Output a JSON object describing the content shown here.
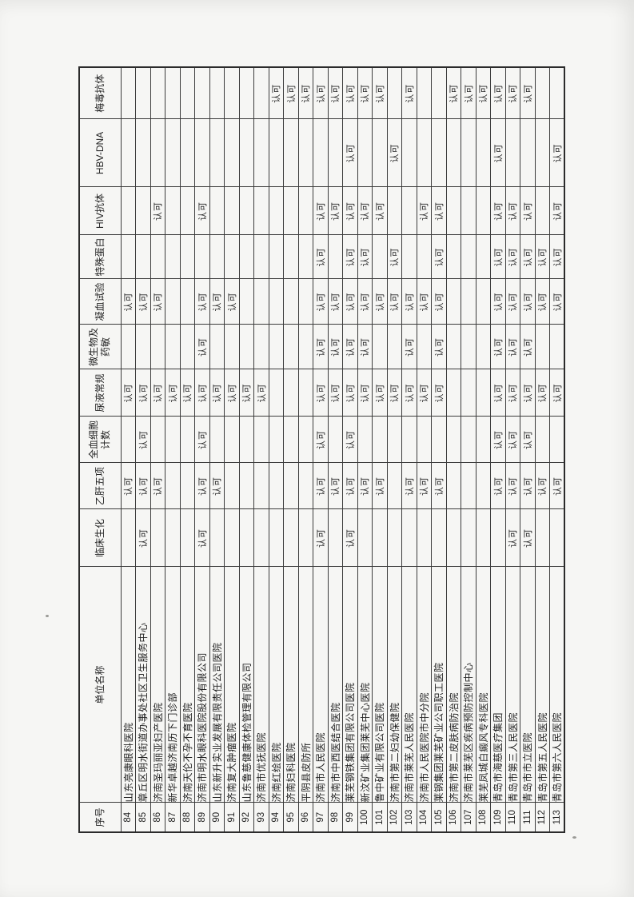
{
  "table": {
    "columns": [
      "序号",
      "单位名称",
      "临床生化",
      "乙肝五项",
      "全血细胞计数",
      "尿液常规",
      "微生物及药敏",
      "凝血试验",
      "特殊蛋白",
      "HIV抗体",
      "HBV-DNA",
      "梅毒抗体"
    ],
    "mark_label": "认可",
    "rows": [
      {
        "no": "84",
        "name": "山东亮康眼科医院",
        "cells": [
          "",
          "认可",
          "",
          "认可",
          "",
          "认可",
          "",
          "",
          "",
          ""
        ]
      },
      {
        "no": "85",
        "name": "章丘区明水街道办事处社区卫生服务中心",
        "cells": [
          "认可",
          "认可",
          "认可",
          "认可",
          "",
          "认可",
          "",
          "",
          "",
          ""
        ]
      },
      {
        "no": "86",
        "name": "济南圣玛丽亚妇产医院",
        "cells": [
          "",
          "认可",
          "",
          "认可",
          "",
          "认可",
          "",
          "认可",
          "",
          ""
        ]
      },
      {
        "no": "87",
        "name": "新华卓越济南历下门诊部",
        "cells": [
          "",
          "",
          "",
          "认可",
          "",
          "",
          "",
          "",
          "",
          ""
        ]
      },
      {
        "no": "88",
        "name": "济南天伦不孕不育医院",
        "cells": [
          "",
          "",
          "",
          "认可",
          "",
          "",
          "",
          "",
          "",
          ""
        ]
      },
      {
        "no": "89",
        "name": "济南市明水眼科医院股份有限公司",
        "cells": [
          "认可",
          "认可",
          "认可",
          "认可",
          "认可",
          "认可",
          "",
          "认可",
          "",
          ""
        ]
      },
      {
        "no": "90",
        "name": "山东新升实业发展有限责任公司医院",
        "cells": [
          "",
          "认可",
          "",
          "认可",
          "",
          "认可",
          "",
          "",
          "",
          ""
        ]
      },
      {
        "no": "91",
        "name": "济南复大肿瘤医院",
        "cells": [
          "",
          "",
          "",
          "认可",
          "",
          "认可",
          "",
          "",
          "",
          ""
        ]
      },
      {
        "no": "92",
        "name": "山东鲁慈健康体检管理有限公司",
        "cells": [
          "",
          "",
          "",
          "认可",
          "",
          "",
          "",
          "",
          "",
          ""
        ]
      },
      {
        "no": "93",
        "name": "济南市优抚医院",
        "cells": [
          "",
          "",
          "",
          "认可",
          "",
          "",
          "",
          "",
          "",
          ""
        ]
      },
      {
        "no": "94",
        "name": "济南红绘医院",
        "cells": [
          "",
          "",
          "",
          "",
          "",
          "",
          "",
          "",
          "",
          "认可"
        ]
      },
      {
        "no": "95",
        "name": "济南妇科医院",
        "cells": [
          "",
          "",
          "",
          "",
          "",
          "",
          "",
          "",
          "",
          "认可"
        ]
      },
      {
        "no": "96",
        "name": "平阴县皮防所",
        "cells": [
          "",
          "",
          "",
          "",
          "",
          "",
          "",
          "",
          "",
          "认可"
        ]
      },
      {
        "no": "97",
        "name": "济南市人民医院",
        "cells": [
          "认可",
          "认可",
          "认可",
          "认可",
          "认可",
          "认可",
          "认可",
          "认可",
          "",
          "认可"
        ]
      },
      {
        "no": "98",
        "name": "济南市中西医结合医院",
        "cells": [
          "",
          "认可",
          "",
          "认可",
          "认可",
          "认可",
          "",
          "认可",
          "",
          "认可"
        ]
      },
      {
        "no": "99",
        "name": "莱芜钢铁集团有限公司医院",
        "cells": [
          "认可",
          "认可",
          "认可",
          "认可",
          "认可",
          "认可",
          "认可",
          "认可",
          "认可",
          "认可"
        ]
      },
      {
        "no": "100",
        "name": "新汶矿业集团莱芜中心医院",
        "cells": [
          "",
          "认可",
          "",
          "认可",
          "认可",
          "认可",
          "认可",
          "认可",
          "",
          "认可"
        ]
      },
      {
        "no": "101",
        "name": "鲁中矿业有限公司医院",
        "cells": [
          "",
          "认可",
          "",
          "认可",
          "",
          "认可",
          "",
          "认可",
          "",
          "认可"
        ]
      },
      {
        "no": "102",
        "name": "济南市第二妇幼保健院",
        "cells": [
          "",
          "",
          "",
          "认可",
          "",
          "认可",
          "认可",
          "",
          "认可",
          ""
        ]
      },
      {
        "no": "103",
        "name": "济南市莱芜人民医院",
        "cells": [
          "",
          "认可",
          "",
          "认可",
          "认可",
          "认可",
          "",
          "",
          "",
          "认可"
        ]
      },
      {
        "no": "104",
        "name": "济南市人民医院市中分院",
        "cells": [
          "",
          "认可",
          "",
          "认可",
          "",
          "认可",
          "",
          "认可",
          "",
          ""
        ]
      },
      {
        "no": "105",
        "name": "莱钢集团莱芜矿业公司职工医院",
        "cells": [
          "",
          "认可",
          "",
          "认可",
          "认可",
          "认可",
          "认可",
          "认可",
          "",
          ""
        ]
      },
      {
        "no": "106",
        "name": "济南市第二皮肤病防治院",
        "cells": [
          "",
          "",
          "",
          "",
          "",
          "",
          "",
          "",
          "",
          "认可"
        ]
      },
      {
        "no": "107",
        "name": "济南市莱芜区疾病预防控制中心",
        "cells": [
          "",
          "",
          "",
          "",
          "",
          "",
          "",
          "",
          "",
          "认可"
        ]
      },
      {
        "no": "108",
        "name": "莱芜凤城白癜风专科医院",
        "cells": [
          "",
          "",
          "",
          "",
          "",
          "",
          "",
          "",
          "",
          "认可"
        ]
      },
      {
        "no": "109",
        "name": "青岛市海慈医疗集团",
        "cells": [
          "",
          "认可",
          "认可",
          "认可",
          "认可",
          "认可",
          "认可",
          "认可",
          "认可",
          "认可"
        ]
      },
      {
        "no": "110",
        "name": "青岛市第三人民医院",
        "cells": [
          "认可",
          "认可",
          "认可",
          "认可",
          "认可",
          "认可",
          "认可",
          "认可",
          "",
          "认可"
        ]
      },
      {
        "no": "111",
        "name": "青岛市市立医院",
        "cells": [
          "认可",
          "认可",
          "认可",
          "认可",
          "认可",
          "认可",
          "认可",
          "认可",
          "",
          "认可"
        ]
      },
      {
        "no": "112",
        "name": "青岛市第五人民医院",
        "cells": [
          "",
          "认可",
          "",
          "认可",
          "",
          "认可",
          "认可",
          "",
          "",
          ""
        ]
      },
      {
        "no": "113",
        "name": "青岛市第六人民医院",
        "cells": [
          "",
          "认可",
          "",
          "认可",
          "",
          "认可",
          "认可",
          "认可",
          "认可",
          ""
        ]
      }
    ]
  }
}
